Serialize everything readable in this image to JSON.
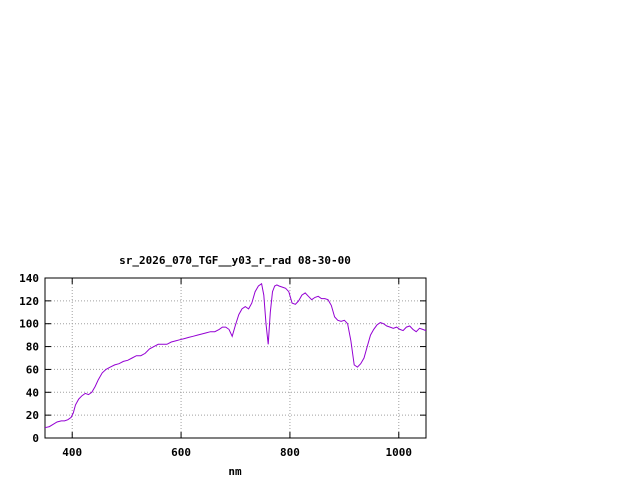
{
  "chart_data": {
    "type": "line",
    "title": "sr_2026_070_TGF__y03_r_rad 08-30-00",
    "xlabel": "nm",
    "ylabel": "",
    "xlim": [
      350,
      1050
    ],
    "ylim": [
      0,
      140
    ],
    "x_ticks": [
      400,
      600,
      800,
      1000
    ],
    "y_ticks": [
      0,
      20,
      40,
      60,
      80,
      100,
      120,
      140
    ],
    "grid": true,
    "line_color": "#9400d3",
    "series": [
      {
        "x": [
          350,
          358,
          365,
          372,
          380,
          386,
          392,
          398,
          402,
          406,
          412,
          418,
          424,
          430,
          436,
          442,
          448,
          455,
          462,
          470,
          478,
          486,
          494,
          502,
          510,
          518,
          526,
          534,
          542,
          550,
          558,
          566,
          574,
          582,
          590,
          598,
          606,
          614,
          622,
          630,
          638,
          646,
          654,
          662,
          670,
          676,
          682,
          688,
          694,
          700,
          706,
          712,
          718,
          724,
          730,
          736,
          742,
          748,
          752,
          756,
          760,
          764,
          768,
          772,
          776,
          780,
          786,
          792,
          798,
          804,
          810,
          816,
          822,
          828,
          834,
          840,
          846,
          852,
          858,
          864,
          870,
          876,
          882,
          888,
          894,
          900,
          906,
          912,
          918,
          924,
          930,
          936,
          942,
          948,
          954,
          960,
          966,
          972,
          978,
          984,
          990,
          996,
          1002,
          1008,
          1014,
          1020,
          1026,
          1032,
          1038,
          1044,
          1050
        ],
        "y": [
          9,
          10,
          12,
          14,
          15,
          15,
          16,
          18,
          22,
          29,
          34,
          37,
          39,
          38,
          40,
          45,
          51,
          57,
          60,
          62,
          64,
          65,
          67,
          68,
          70,
          72,
          72,
          74,
          78,
          80,
          82,
          82,
          82,
          84,
          85,
          86,
          87,
          88,
          89,
          90,
          91,
          92,
          93,
          93,
          95,
          97,
          97,
          95,
          89,
          99,
          108,
          113,
          115,
          113,
          118,
          128,
          133,
          135,
          125,
          100,
          82,
          110,
          128,
          133,
          134,
          133,
          132,
          131,
          128,
          118,
          117,
          120,
          125,
          127,
          124,
          121,
          123,
          124,
          122,
          122,
          121,
          116,
          106,
          103,
          102,
          103,
          100,
          85,
          64,
          62,
          65,
          70,
          80,
          90,
          95,
          99,
          101,
          100,
          98,
          97,
          96,
          97,
          95,
          94,
          97,
          98,
          95,
          93,
          96,
          95,
          94
        ]
      }
    ]
  }
}
